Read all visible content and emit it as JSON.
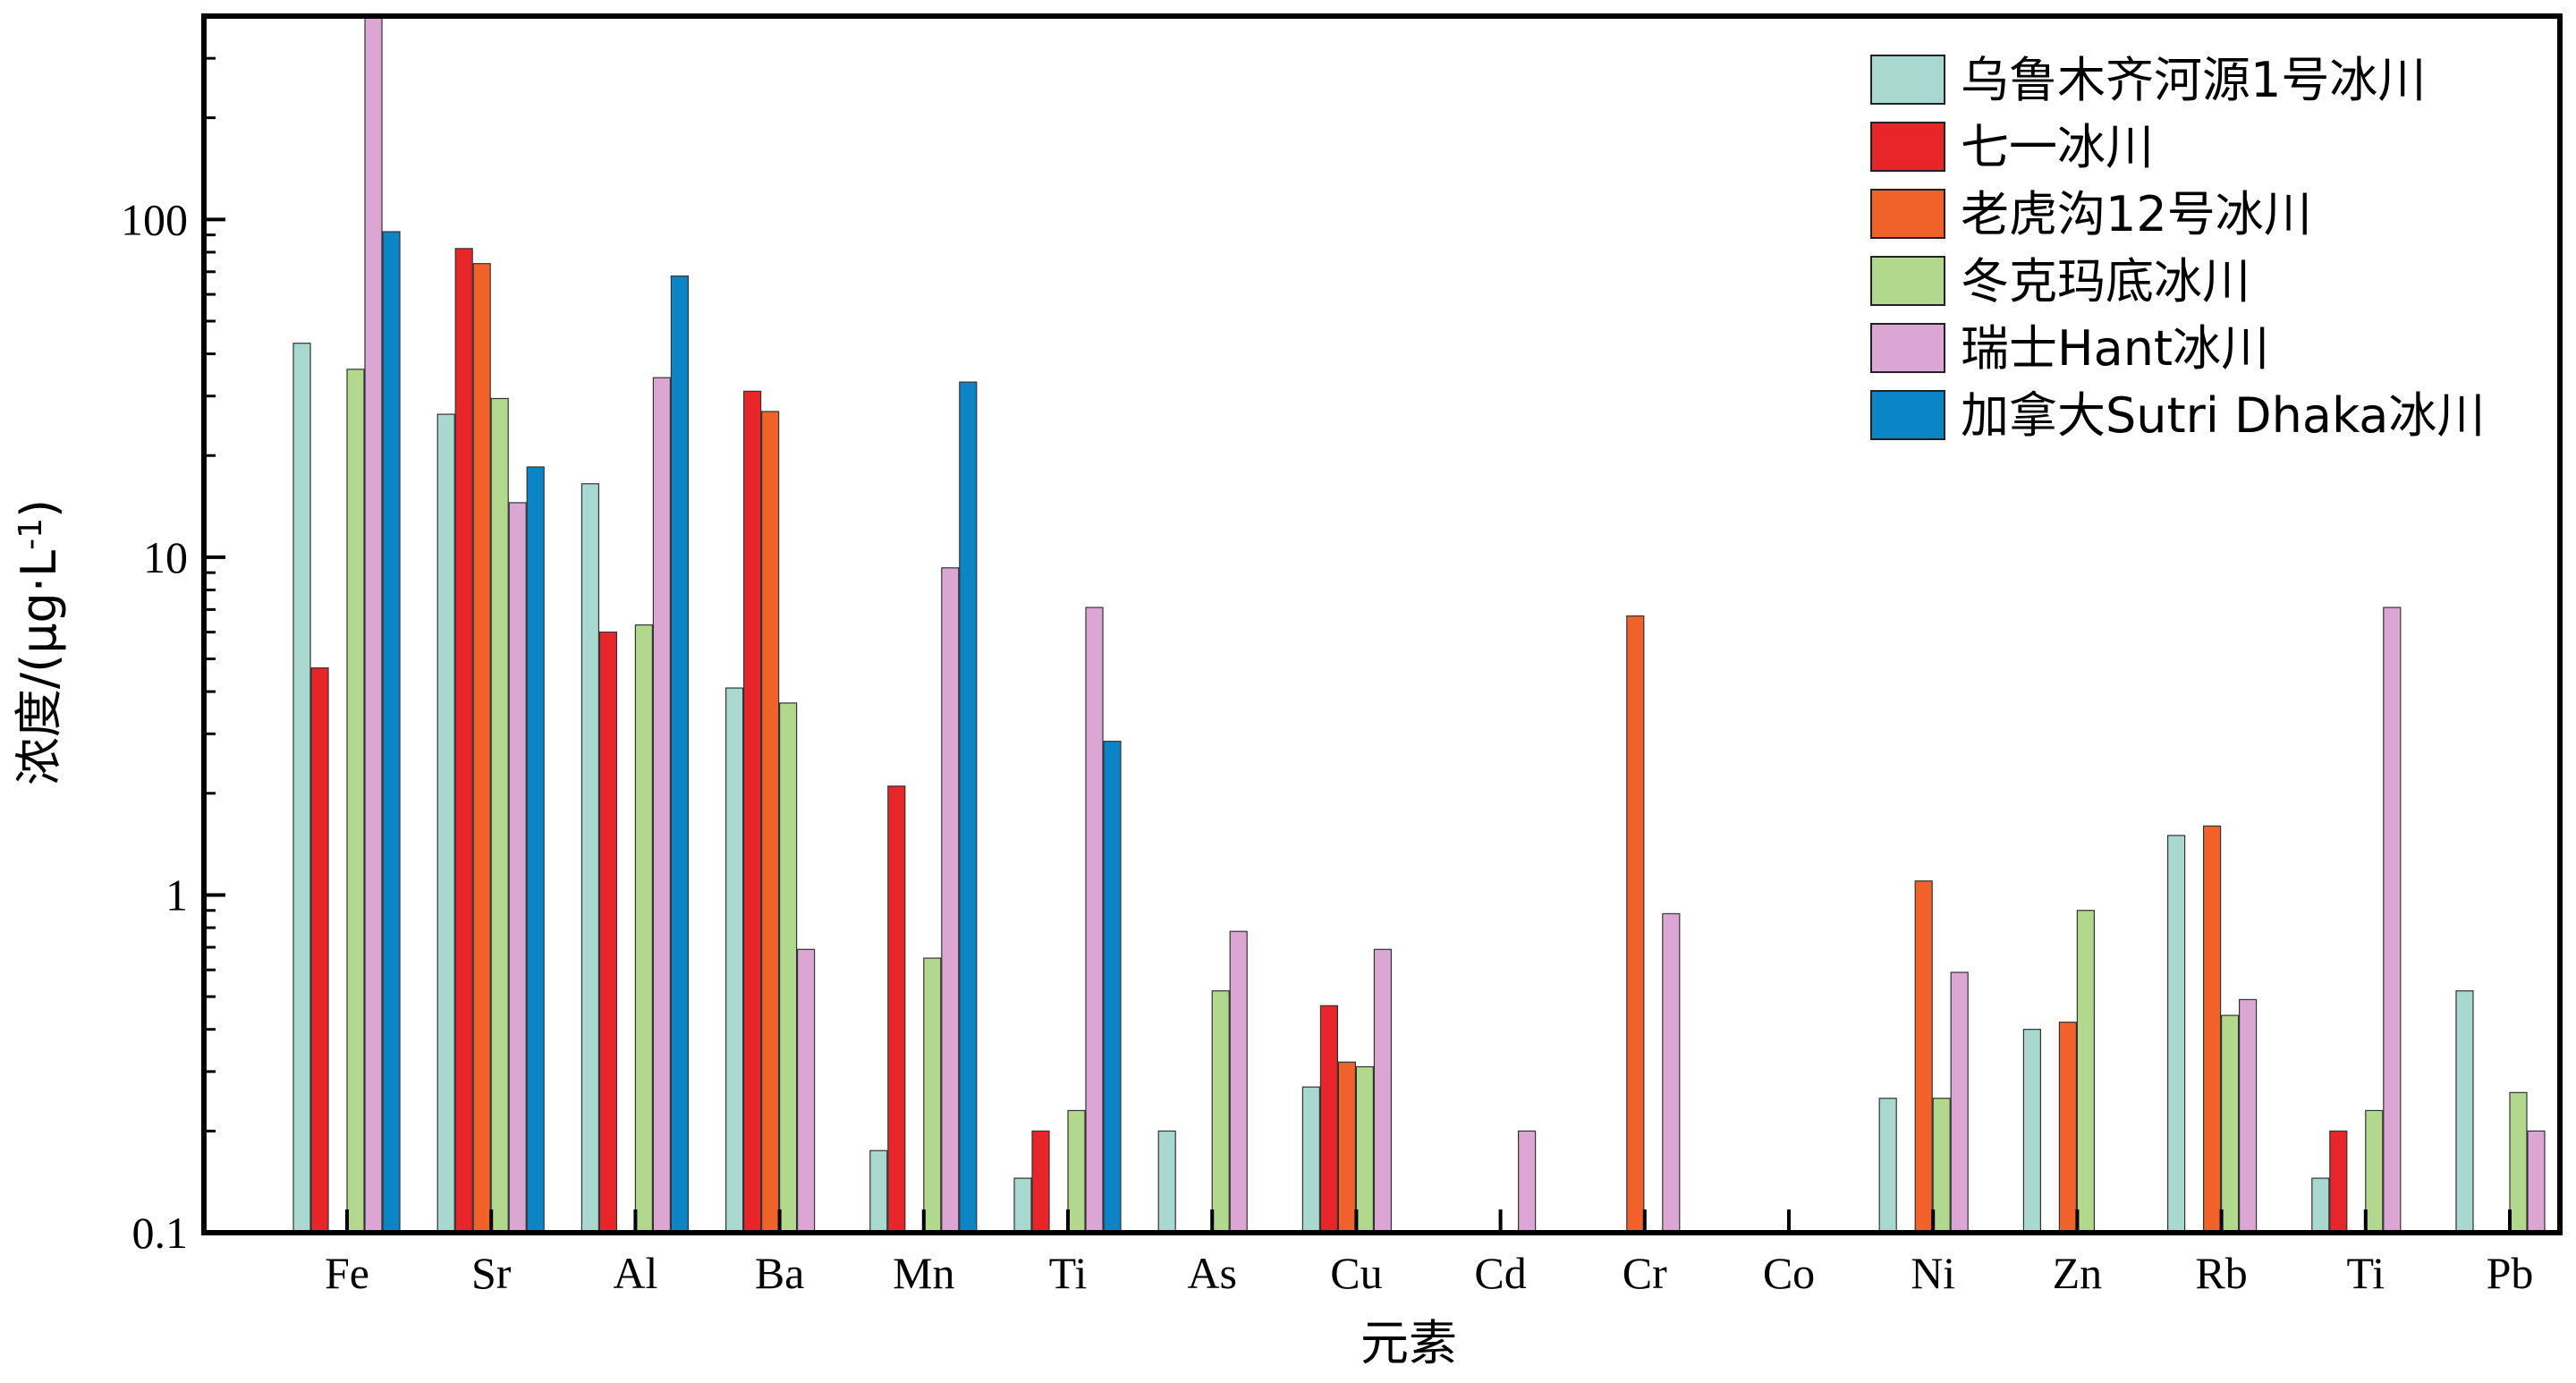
{
  "chart_data": {
    "type": "bar",
    "xlabel": "元素",
    "ylabel": "浓度/(μg·L-1)",
    "ylabel_base": "浓度/(μg·L",
    "ylabel_sup": "-1",
    "ylabel_close": ")",
    "yscale": "log",
    "ylim": [
      0.1,
      400
    ],
    "yticks": [
      0.1,
      1,
      10,
      100
    ],
    "ytick_labels": [
      "0.1",
      "1",
      "10",
      "100"
    ],
    "legend_position": "top-right",
    "grid": false,
    "categories": [
      "Fe",
      "Sr",
      "Al",
      "Ba",
      "Mn",
      "Ti",
      "As",
      "Cu",
      "Cd",
      "Cr",
      "Co",
      "Ni",
      "Zn",
      "Rb",
      "Ti",
      "Pb"
    ],
    "series": [
      {
        "name": "乌鲁木齐河源1号冰川",
        "color": "#a8d8cf",
        "values": [
          43,
          26.5,
          16.5,
          4.1,
          0.175,
          0.145,
          0.2,
          0.27,
          null,
          null,
          null,
          0.25,
          0.4,
          1.5,
          0.145,
          0.52
        ]
      },
      {
        "name": "七一冰川",
        "color": "#e8262a",
        "values": [
          4.7,
          82,
          6.0,
          31,
          2.1,
          0.2,
          null,
          0.47,
          null,
          null,
          null,
          null,
          null,
          null,
          0.2,
          null
        ]
      },
      {
        "name": "老虎沟12号冰川",
        "color": "#f0622a",
        "values": [
          null,
          74,
          null,
          27,
          null,
          null,
          null,
          0.32,
          null,
          6.7,
          null,
          1.1,
          0.42,
          1.6,
          null,
          null
        ]
      },
      {
        "name": "冬克玛底冰川",
        "color": "#b2d88e",
        "values": [
          36,
          29.5,
          6.3,
          3.7,
          0.65,
          0.23,
          0.52,
          0.31,
          null,
          null,
          null,
          0.25,
          0.9,
          0.44,
          0.23,
          0.26
        ]
      },
      {
        "name": "瑞士Hant冰川",
        "color": "#dba6d4",
        "values": [
          400,
          14.5,
          34,
          0.69,
          9.3,
          7.1,
          0.78,
          0.69,
          0.2,
          0.88,
          null,
          0.59,
          null,
          0.49,
          7.1,
          0.2
        ]
      },
      {
        "name": "加拿大Sutri Dhaka冰川",
        "color": "#0b85c6",
        "values": [
          92,
          18.5,
          68,
          null,
          33,
          2.85,
          null,
          null,
          null,
          null,
          null,
          null,
          null,
          null,
          null,
          null
        ]
      }
    ]
  }
}
